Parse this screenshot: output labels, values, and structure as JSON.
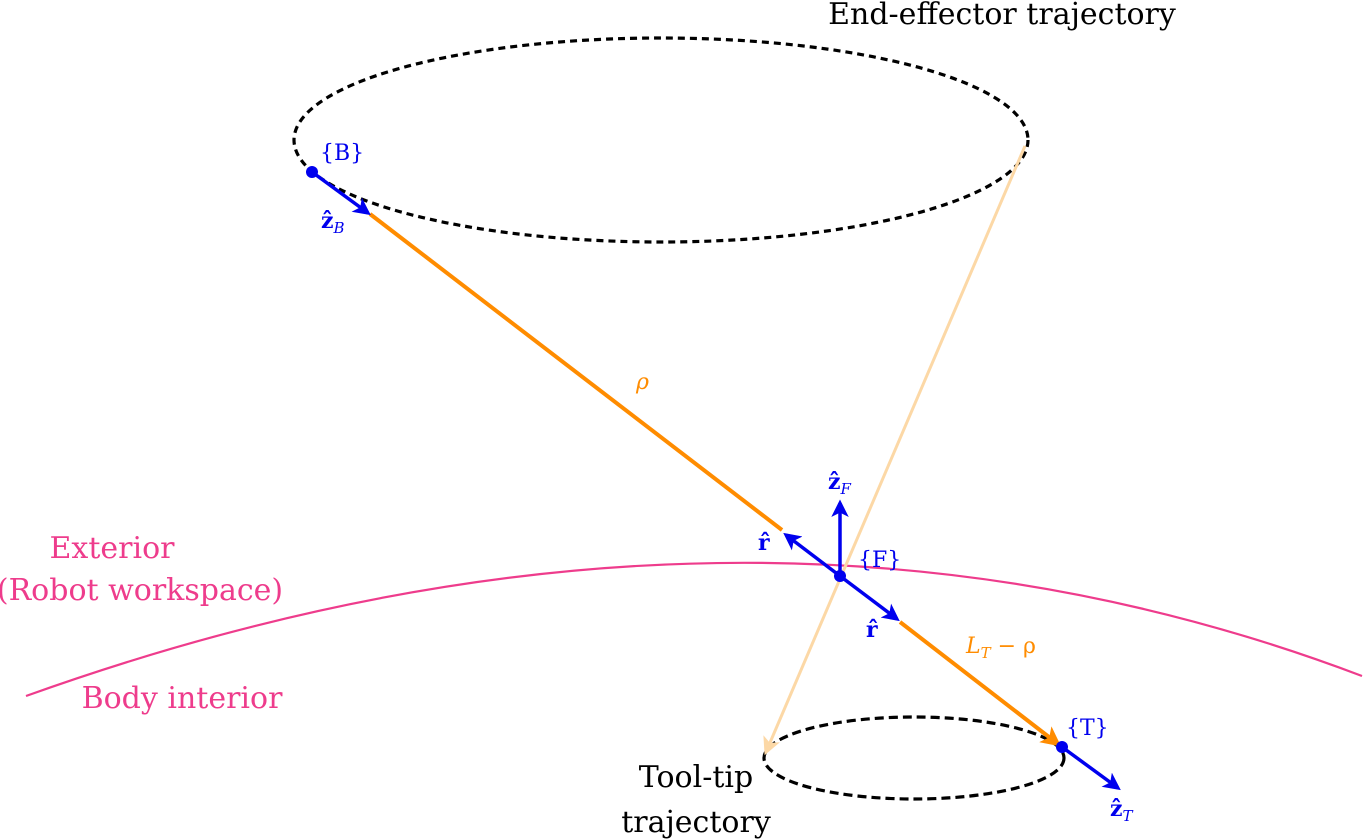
{
  "colors": {
    "blue": "#0000ee",
    "orange": "#ff8c00",
    "orange_faded": "#fcd8a6",
    "pink": "#ee3c8c",
    "black": "#000000"
  },
  "labels": {
    "end_effector_trajectory": "End-effector trajectory",
    "tool_tip_trajectory_line1": "Tool-tip",
    "tool_tip_trajectory_line2": "trajectory",
    "exterior_line1": "Exterior",
    "exterior_line2": "(Robot workspace)",
    "body_interior": "Body interior",
    "frame_B": "{B}",
    "frame_F": "{F}",
    "frame_T": "{T}",
    "rho": "ρ",
    "lt_minus_rho": "L",
    "lt_minus_rho_sub": "T",
    "lt_minus_rho_tail": " − ρ"
  },
  "vectors": {
    "z_base": "ẑ",
    "z_B_sub": "B",
    "z_F_sub": "F",
    "z_T_sub": "T",
    "r_hat": "r̂"
  },
  "icons": {
    "frame_point": "filled-circle",
    "arrowhead": "triangle-arrow"
  }
}
